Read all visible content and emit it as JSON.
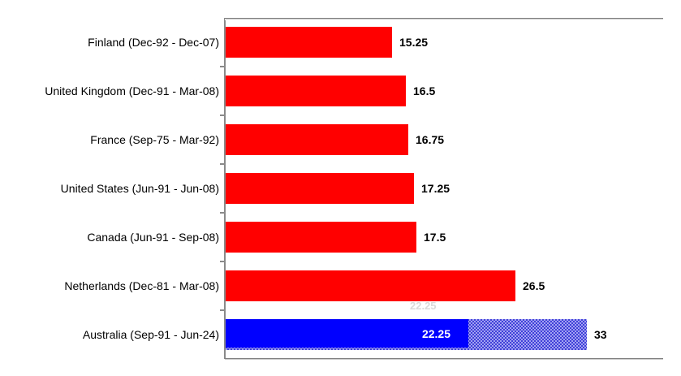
{
  "chart_data": {
    "type": "bar",
    "orientation": "horizontal",
    "title": "",
    "xlabel": "",
    "ylabel": "",
    "xlim": [
      0,
      40
    ],
    "grid": false,
    "legend_position": "none",
    "categories": [
      "Finland (Dec-92 - Dec-07)",
      "United Kingdom (Dec-91 - Mar-08)",
      "France (Sep-75 - Mar-92)",
      "United States (Jun-91 - Jun-08)",
      "Canada (Jun-91 - Sep-08)",
      "Netherlands (Dec-81 - Mar-08)",
      "Australia (Sep-91 - Jun-24)"
    ],
    "rows": [
      {
        "label": "Finland (Dec-92 - Dec-07)",
        "value": 15.25,
        "value_label": "15.25",
        "color": "#ff0000",
        "style": "solid"
      },
      {
        "label": "United Kingdom (Dec-91 - Mar-08)",
        "value": 16.5,
        "value_label": "16.5",
        "color": "#ff0000",
        "style": "solid"
      },
      {
        "label": "France (Sep-75 - Mar-92)",
        "value": 16.75,
        "value_label": "16.75",
        "color": "#ff0000",
        "style": "solid"
      },
      {
        "label": "United States (Jun-91 - Jun-08)",
        "value": 17.25,
        "value_label": "17.25",
        "color": "#ff0000",
        "style": "solid"
      },
      {
        "label": "Canada (Jun-91 - Sep-08)",
        "value": 17.5,
        "value_label": "17.5",
        "color": "#ff0000",
        "style": "solid"
      },
      {
        "label": "Netherlands (Dec-81 - Mar-08)",
        "value": 26.5,
        "value_label": "26.5",
        "color": "#ff0000",
        "style": "solid"
      },
      {
        "label": "Australia (Sep-91 - Jun-24)",
        "value": 33,
        "value_label": "33",
        "color": "#0000ff",
        "style": "segmented",
        "segments": [
          {
            "value": 22.25,
            "label": "22.25",
            "fill": "solid",
            "color": "#0000ff",
            "label_color": "#ffffff"
          },
          {
            "value": 10.75,
            "label": "",
            "fill": "hatched",
            "color": "#7b7bea"
          }
        ]
      }
    ],
    "ghost_label": {
      "text": "22.25",
      "color": "#dadada"
    },
    "colors": {
      "red_bar": "#ff0000",
      "blue_bar": "#0000ff",
      "hatch_dark": "#4040d8",
      "hatch_light": "#a2a2f2",
      "axis": "#8a8a8a",
      "axis_shadow": "#c9c9c9",
      "value_label": "#000000",
      "category_label": "#000000",
      "background": "#ffffff"
    }
  }
}
